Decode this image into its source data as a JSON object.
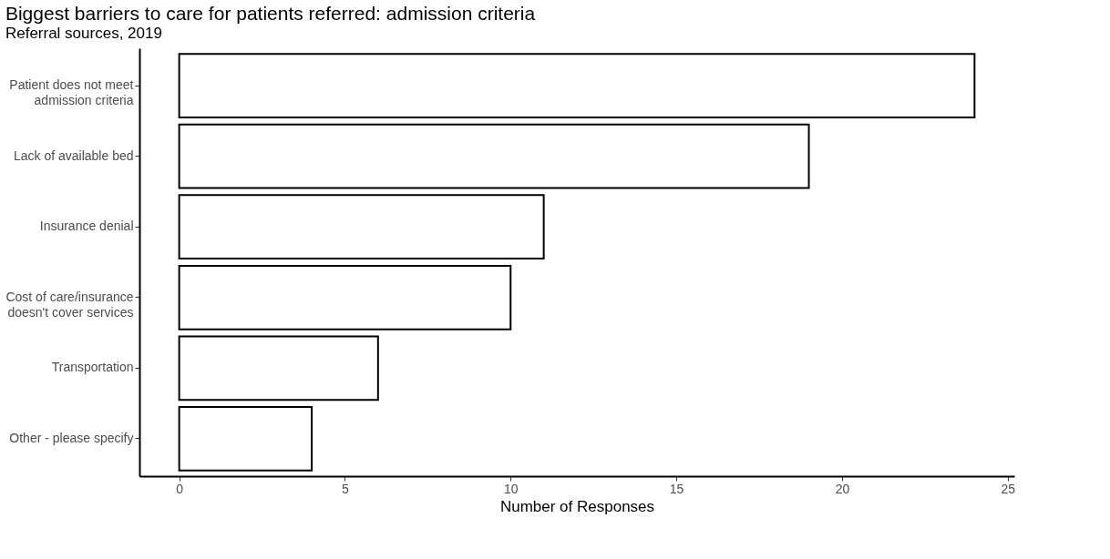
{
  "chart_data": {
    "type": "bar",
    "orientation": "horizontal",
    "title": "Biggest barriers to care for patients referred: admission criteria",
    "subtitle": "Referral sources, 2019",
    "xlabel": "Number of Responses",
    "categories": [
      "Patient does not meet\nadmission criteria",
      "Lack of available bed",
      "Insurance denial",
      "Cost of care/insurance\ndoesn't cover services",
      "Transportation",
      "Other - please specify"
    ],
    "values": [
      24,
      19,
      11,
      10,
      6,
      4
    ],
    "color": "#ffffff",
    "xlim": [
      -1.2,
      25.2
    ],
    "xticks": [
      0,
      5,
      10,
      15,
      20,
      25
    ],
    "grid": false
  }
}
